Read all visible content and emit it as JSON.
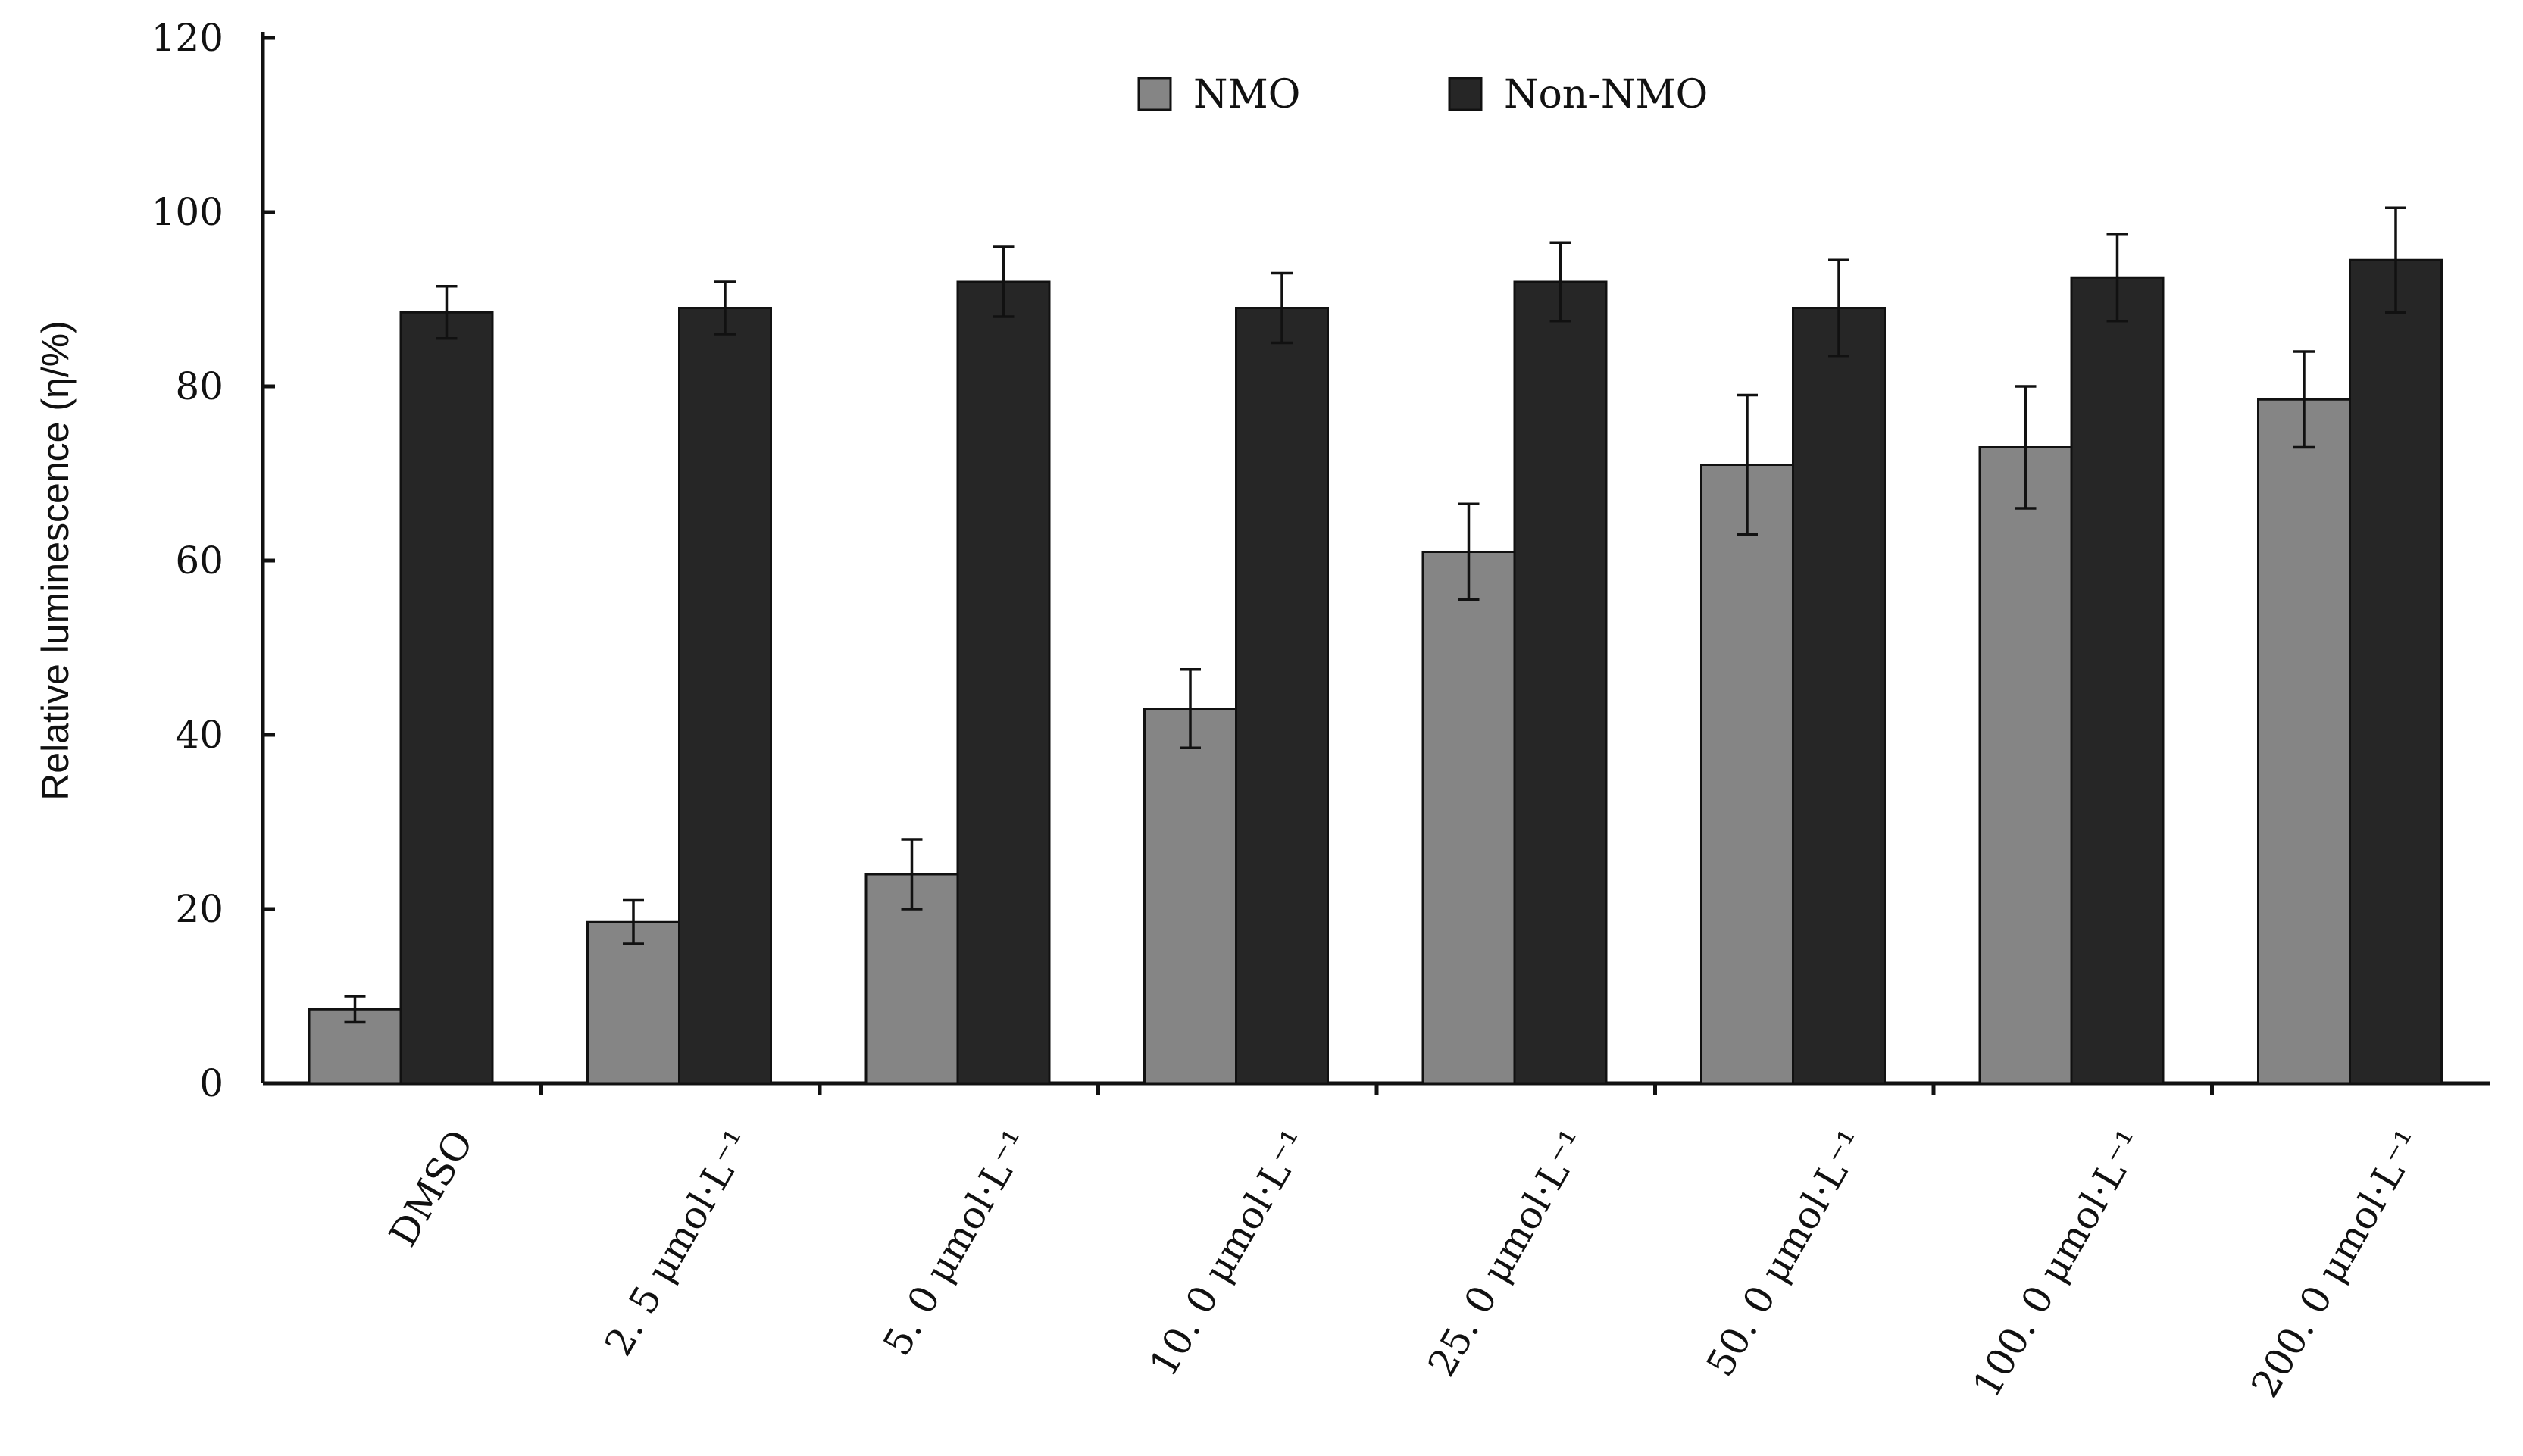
{
  "chart_data": {
    "type": "bar",
    "title": "",
    "xlabel": "",
    "ylabel": "Relative luminescence (η/%)",
    "ylim": [
      0,
      120
    ],
    "yticks": [
      0,
      20,
      40,
      60,
      80,
      100,
      120
    ],
    "grid": false,
    "legend_position": "top-center",
    "categories": [
      "DMSO",
      "2. 5 μmol·L⁻¹",
      "5. 0 μmol·L⁻¹",
      "10. 0 μmol·L⁻¹",
      "25. 0 μmol·L⁻¹",
      "50. 0 μmol·L⁻¹",
      "100. 0 μmol·L⁻¹",
      "200. 0 μmol·L⁻¹"
    ],
    "series": [
      {
        "name": "NMO",
        "color": "#858585",
        "values": [
          8.5,
          18.5,
          24,
          43,
          61,
          71,
          73,
          78.5
        ],
        "errors": [
          1.5,
          2.5,
          4,
          4.5,
          5.5,
          8,
          7,
          5.5
        ]
      },
      {
        "name": "Non-NMO",
        "color": "#262626",
        "values": [
          88.5,
          89,
          92,
          89,
          92,
          89,
          92.5,
          94.5
        ],
        "errors": [
          3,
          3,
          4,
          4,
          4.5,
          5.5,
          5,
          6
        ]
      }
    ]
  }
}
